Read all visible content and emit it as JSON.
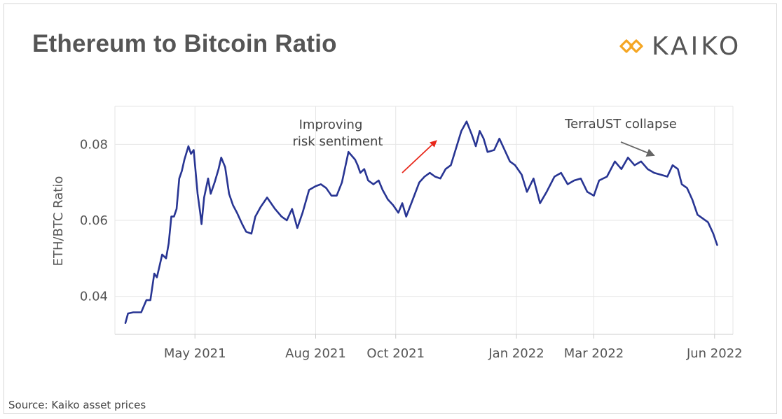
{
  "header": {
    "title": "Ethereum to Bitcoin Ratio",
    "logo_text": "KAIKO",
    "logo_color": "#f5a623"
  },
  "footer": {
    "source": "Source: Kaiko asset prices"
  },
  "chart_data": {
    "type": "line",
    "title": "Ethereum to Bitcoin Ratio",
    "xlabel": "",
    "ylabel": "ETH/BTC Ratio",
    "ylim": [
      0.03,
      0.09
    ],
    "yticks": [
      0.04,
      0.06,
      0.08
    ],
    "ytick_labels": [
      "0.04",
      "0.06",
      "0.08"
    ],
    "xlim": [
      "2021-03-01",
      "2022-06-15"
    ],
    "xticks": [
      "2021-05-01",
      "2021-08-01",
      "2021-10-01",
      "2022-01-01",
      "2022-03-01",
      "2022-06-01"
    ],
    "xtick_labels": [
      "May 2021",
      "Aug 2021",
      "Oct 2021",
      "Jan 2022",
      "Mar 2022",
      "Jun 2022"
    ],
    "grid": true,
    "line_color": "#283593",
    "series": [
      {
        "x": [
          "2021-03-09",
          "2021-03-11",
          "2021-03-15",
          "2021-03-21",
          "2021-03-25",
          "2021-03-28",
          "2021-03-31",
          "2021-04-02",
          "2021-04-04",
          "2021-04-06",
          "2021-04-09",
          "2021-04-11",
          "2021-04-13",
          "2021-04-15",
          "2021-04-17",
          "2021-04-19",
          "2021-04-21",
          "2021-04-23",
          "2021-04-26",
          "2021-04-28",
          "2021-04-30",
          "2021-05-03",
          "2021-05-05",
          "2021-05-06",
          "2021-05-08",
          "2021-05-11",
          "2021-05-13",
          "2021-05-16",
          "2021-05-19",
          "2021-05-21",
          "2021-05-24",
          "2021-05-27",
          "2021-05-30",
          "2021-06-02",
          "2021-06-06",
          "2021-06-09",
          "2021-06-13",
          "2021-06-16",
          "2021-06-20",
          "2021-06-25",
          "2021-07-01",
          "2021-07-06",
          "2021-07-10",
          "2021-07-14",
          "2021-07-18",
          "2021-07-22",
          "2021-07-27",
          "2021-08-01",
          "2021-08-05",
          "2021-08-09",
          "2021-08-13",
          "2021-08-17",
          "2021-08-21",
          "2021-08-26",
          "2021-08-31",
          "2021-09-02",
          "2021-09-04",
          "2021-09-07",
          "2021-09-10",
          "2021-09-14",
          "2021-09-18",
          "2021-09-21",
          "2021-09-25",
          "2021-09-29",
          "2021-10-03",
          "2021-10-06",
          "2021-10-09",
          "2021-10-14",
          "2021-10-19",
          "2021-10-23",
          "2021-10-27",
          "2021-10-31",
          "2021-11-04",
          "2021-11-08",
          "2021-11-12",
          "2021-11-16",
          "2021-11-20",
          "2021-11-24",
          "2021-11-28",
          "2021-12-01",
          "2021-12-04",
          "2021-12-07",
          "2021-12-10",
          "2021-12-15",
          "2021-12-19",
          "2021-12-23",
          "2021-12-27",
          "2021-12-31",
          "2022-01-05",
          "2022-01-09",
          "2022-01-14",
          "2022-01-19",
          "2022-01-24",
          "2022-01-30",
          "2022-02-04",
          "2022-02-09",
          "2022-02-14",
          "2022-02-19",
          "2022-02-24",
          "2022-03-01",
          "2022-03-05",
          "2022-03-11",
          "2022-03-17",
          "2022-03-22",
          "2022-03-27",
          "2022-04-01",
          "2022-04-06",
          "2022-04-11",
          "2022-04-16",
          "2022-04-21",
          "2022-04-26",
          "2022-04-30",
          "2022-05-04",
          "2022-05-07",
          "2022-05-11",
          "2022-05-15",
          "2022-05-19",
          "2022-05-23",
          "2022-05-27",
          "2022-05-31",
          "2022-06-03"
        ],
        "y": [
          0.033,
          0.0355,
          0.0358,
          0.0358,
          0.039,
          0.039,
          0.046,
          0.045,
          0.048,
          0.051,
          0.05,
          0.054,
          0.061,
          0.061,
          0.063,
          0.071,
          0.073,
          0.076,
          0.0795,
          0.0775,
          0.0785,
          0.067,
          0.062,
          0.059,
          0.066,
          0.071,
          0.067,
          0.07,
          0.0735,
          0.0765,
          0.074,
          0.067,
          0.064,
          0.062,
          0.059,
          0.057,
          0.0565,
          0.061,
          0.0635,
          0.066,
          0.063,
          0.061,
          0.06,
          0.063,
          0.058,
          0.062,
          0.068,
          0.069,
          0.0695,
          0.0685,
          0.0665,
          0.0665,
          0.07,
          0.078,
          0.076,
          0.0745,
          0.0725,
          0.0735,
          0.0705,
          0.0695,
          0.0705,
          0.068,
          0.0655,
          0.064,
          0.062,
          0.0645,
          0.061,
          0.0655,
          0.07,
          0.0715,
          0.0725,
          0.0715,
          0.071,
          0.0735,
          0.0745,
          0.079,
          0.0835,
          0.086,
          0.0825,
          0.0795,
          0.0835,
          0.0815,
          0.078,
          0.0785,
          0.0815,
          0.0785,
          0.0755,
          0.0745,
          0.072,
          0.0675,
          0.071,
          0.0645,
          0.0675,
          0.0715,
          0.0725,
          0.0695,
          0.0705,
          0.071,
          0.0675,
          0.0665,
          0.0705,
          0.0715,
          0.0755,
          0.0735,
          0.0765,
          0.0745,
          0.0755,
          0.0735,
          0.0725,
          0.072,
          0.0715,
          0.0745,
          0.0735,
          0.0695,
          0.0685,
          0.0655,
          0.0615,
          0.0605,
          0.0595,
          0.0565,
          0.0535
        ]
      }
    ],
    "annotations": [
      {
        "text_lines": [
          "Improving",
          "risk sentiment"
        ],
        "arrow_color": "#e8271a"
      },
      {
        "text_lines": [
          "TerraUST collapse"
        ],
        "arrow_color": "#666666"
      }
    ]
  }
}
